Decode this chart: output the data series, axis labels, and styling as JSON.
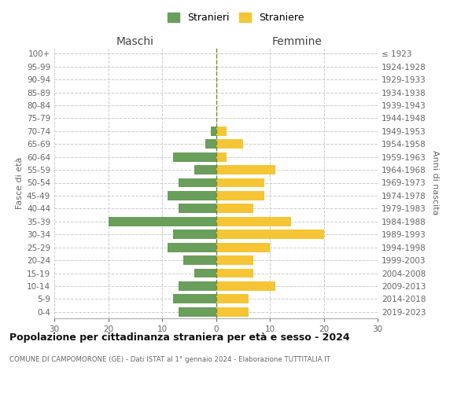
{
  "age_groups": [
    "100+",
    "95-99",
    "90-94",
    "85-89",
    "80-84",
    "75-79",
    "70-74",
    "65-69",
    "60-64",
    "55-59",
    "50-54",
    "45-49",
    "40-44",
    "35-39",
    "30-34",
    "25-29",
    "20-24",
    "15-19",
    "10-14",
    "5-9",
    "0-4"
  ],
  "birth_years": [
    "≤ 1923",
    "1924-1928",
    "1929-1933",
    "1934-1938",
    "1939-1943",
    "1944-1948",
    "1949-1953",
    "1954-1958",
    "1959-1963",
    "1964-1968",
    "1969-1973",
    "1974-1978",
    "1979-1983",
    "1984-1988",
    "1989-1993",
    "1994-1998",
    "1999-2003",
    "2004-2008",
    "2009-2013",
    "2014-2018",
    "2019-2023"
  ],
  "maschi": [
    0,
    0,
    0,
    0,
    0,
    0,
    1,
    2,
    8,
    4,
    7,
    9,
    7,
    20,
    8,
    9,
    6,
    4,
    7,
    8,
    7
  ],
  "femmine": [
    0,
    0,
    0,
    0,
    0,
    0,
    2,
    5,
    2,
    11,
    9,
    9,
    7,
    14,
    20,
    10,
    7,
    7,
    11,
    6,
    6
  ],
  "maschi_color": "#6a9e5b",
  "femmine_color": "#f5c535",
  "background_color": "#ffffff",
  "grid_color": "#cccccc",
  "title": "Popolazione per cittadinanza straniera per età e sesso - 2024",
  "subtitle": "COMUNE DI CAMPOMORONE (GE) - Dati ISTAT al 1° gennaio 2024 - Elaborazione TUTTITALIA.IT",
  "xlabel_left": "Maschi",
  "xlabel_right": "Femmine",
  "ylabel_left": "Fasce di età",
  "ylabel_right": "Anni di nascita",
  "legend_maschi": "Stranieri",
  "legend_femmine": "Straniere",
  "xlim": 30
}
